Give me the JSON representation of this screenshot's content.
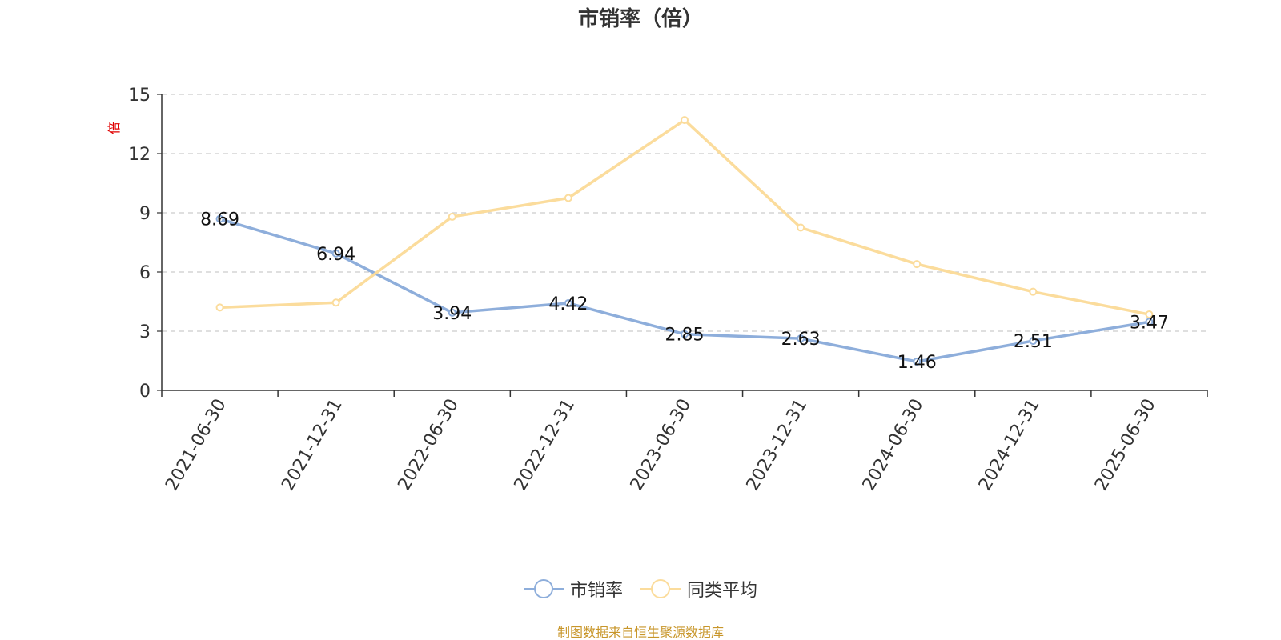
{
  "chart_data": {
    "type": "line",
    "title": "市销率（倍）",
    "ylabel": "倍",
    "ylim": [
      0,
      15
    ],
    "yticks": [
      0,
      3,
      6,
      9,
      12,
      15
    ],
    "grid": true,
    "legend_position": "bottom",
    "categories": [
      "2021-06-30",
      "2021-12-31",
      "2022-06-30",
      "2022-12-31",
      "2023-06-30",
      "2023-12-31",
      "2024-06-30",
      "2024-12-31",
      "2025-06-30"
    ],
    "series": [
      {
        "name": "市销率",
        "color": "#8eaedb",
        "values": [
          8.69,
          6.94,
          3.94,
          4.42,
          2.85,
          2.63,
          1.46,
          2.51,
          3.47
        ],
        "labels": [
          "8.69",
          "6.94",
          "3.94",
          "4.42",
          "2.85",
          "2.63",
          "1.46",
          "2.51",
          "3.47"
        ]
      },
      {
        "name": "同类平均",
        "color": "#fbdc9c",
        "values": [
          4.2,
          4.45,
          8.8,
          9.75,
          13.7,
          8.25,
          6.4,
          5.0,
          3.85
        ]
      }
    ]
  },
  "footer": {
    "source_text": "制图数据来自恒生聚源数据库",
    "color": "#c8962a"
  },
  "colors": {
    "axis": "#333333",
    "grid": "#cccccc",
    "ylabel": "#e00000"
  }
}
